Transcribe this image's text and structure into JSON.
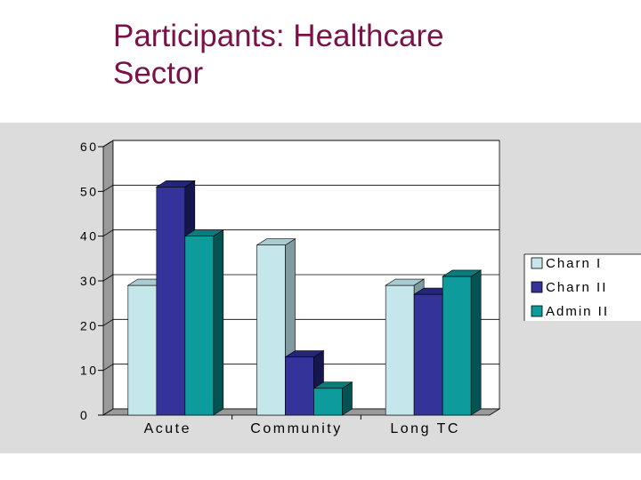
{
  "slide": {
    "title_line1": "Participants: Healthcare",
    "title_line2": "Sector"
  },
  "chart_data": {
    "type": "bar",
    "style": "3d-clustered",
    "categories": [
      "Acute",
      "Community",
      "Long TC"
    ],
    "series": [
      {
        "name": "Charn I",
        "values": [
          29,
          38,
          29
        ],
        "color": "#c5e6ea",
        "side_color": "#7f9b9f",
        "top_color": "#a9ccd1"
      },
      {
        "name": "Charn II",
        "values": [
          51,
          13,
          27
        ],
        "color": "#33339a",
        "side_color": "#16164f",
        "top_color": "#25257a"
      },
      {
        "name": "Admin II",
        "values": [
          40,
          6,
          31
        ],
        "color": "#0e9b9b",
        "side_color": "#045353",
        "top_color": "#0b7b7b"
      }
    ],
    "ylim": [
      0,
      60
    ],
    "yticks": [
      0,
      10,
      20,
      30,
      40,
      50,
      60
    ],
    "grid": true,
    "legend_position": "right",
    "title": "",
    "xlabel": "",
    "ylabel": ""
  },
  "colors": {
    "title": "#7a1248",
    "panel_background": "#dcdcdc",
    "plot_background": "#ffffff",
    "floor": "#9a9a9a",
    "side_wall": "#9a9a9a"
  }
}
